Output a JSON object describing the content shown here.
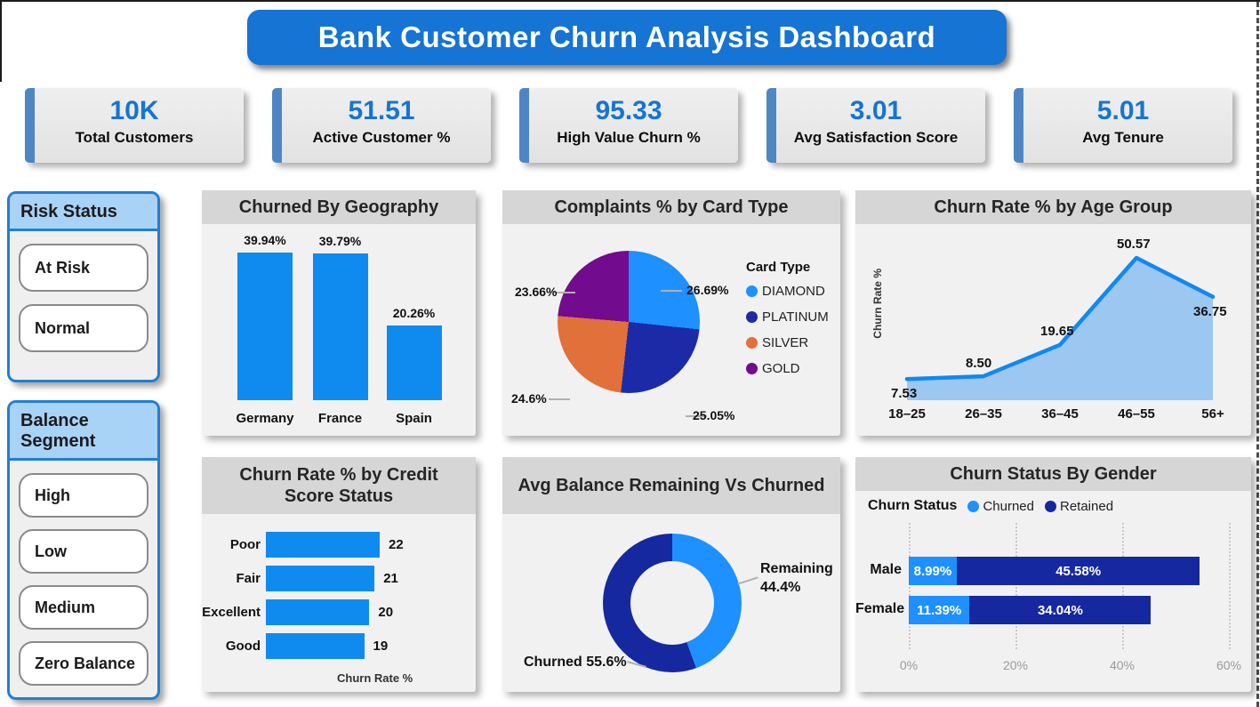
{
  "page": {
    "title": "Bank Customer Churn Analysis Dashboard"
  },
  "colors": {
    "banner_blue": "#1574d4",
    "kpi_accent": "#4e86c4",
    "bright_blue": "#0f8bf0",
    "navy": "#16289f",
    "orange": "#e2703a",
    "purple": "#720b8e",
    "area_fill": "#9cc7f0",
    "slicer_border": "#1e7fd8",
    "slicer_header_bg": "#a9d2f7"
  },
  "kpis": [
    {
      "value": "10K",
      "label": "Total Customers"
    },
    {
      "value": "51.51",
      "label": "Active Customer %"
    },
    {
      "value": "95.33",
      "label": "High Value Churn %"
    },
    {
      "value": "3.01",
      "label": "Avg Satisfaction Score"
    },
    {
      "value": "5.01",
      "label": "Avg Tenure"
    }
  ],
  "slicers": [
    {
      "title": "Risk Status",
      "options": [
        "At Risk",
        "Normal"
      ]
    },
    {
      "title": "Balance Segment",
      "options": [
        "High",
        "Low",
        "Medium",
        "Zero Balance"
      ]
    }
  ],
  "chart_data": [
    {
      "id": "churned_by_geography",
      "type": "bar",
      "title": "Churned By Geography",
      "categories": [
        "Germany",
        "France",
        "Spain"
      ],
      "values": [
        39.94,
        39.79,
        20.26
      ],
      "labels": [
        "39.94%",
        "39.79%",
        "20.26%"
      ],
      "ylim": [
        0,
        45
      ],
      "bar_color": "#0f8bf0"
    },
    {
      "id": "complaints_pct_by_card_type",
      "type": "pie",
      "title": "Complaints % by Card Type",
      "legend_title": "Card Type",
      "legend_position": "right",
      "slices": [
        {
          "name": "DIAMOND",
          "value": 26.69,
          "label": "26.69%",
          "color": "#1e90ff"
        },
        {
          "name": "PLATINUM",
          "value": 25.05,
          "label": "25.05%",
          "color": "#1c2aa8"
        },
        {
          "name": "SILVER",
          "value": 24.6,
          "label": "24.6%",
          "color": "#e2703a"
        },
        {
          "name": "GOLD",
          "value": 23.66,
          "label": "23.66%",
          "color": "#720b8e"
        }
      ]
    },
    {
      "id": "churn_rate_pct_by_age_group",
      "type": "area",
      "title": "Churn Rate % by Age Group",
      "ylabel": "Churn Rate %",
      "categories": [
        "18–25",
        "26–35",
        "36–45",
        "46–55",
        "56+"
      ],
      "values": [
        7.53,
        8.5,
        19.65,
        50.57,
        36.75
      ],
      "labels": [
        "7.53",
        "8.50",
        "19.65",
        "50.57",
        "36.75"
      ],
      "ylim": [
        0,
        55
      ],
      "line_color": "#1089f0",
      "fill_color": "#9cc7f0"
    },
    {
      "id": "churn_rate_pct_by_credit_score_status",
      "type": "bar",
      "orientation": "horizontal",
      "title": "Churn Rate % by Credit Score Status",
      "xlabel": "Churn Rate %",
      "categories": [
        "Poor",
        "Fair",
        "Excellent",
        "Good"
      ],
      "values": [
        22,
        21,
        20,
        19
      ],
      "labels": [
        "22",
        "21",
        "20",
        "19"
      ],
      "xlim": [
        0,
        24
      ],
      "bar_color": "#0f8bf0"
    },
    {
      "id": "avg_balance_remaining_vs_churned",
      "type": "donut",
      "title": "Avg Balance Remaining Vs Churned",
      "slices": [
        {
          "name": "Remaining",
          "value": 44.4,
          "label": "44.4%",
          "color": "#1e90ff"
        },
        {
          "name": "Churned",
          "value": 55.6,
          "label": "55.6%",
          "color": "#16289f"
        }
      ]
    },
    {
      "id": "churn_status_by_gender",
      "type": "bar",
      "orientation": "horizontal-stacked",
      "title": "Churn Status By Gender",
      "legend_title": "Churn Status",
      "categories": [
        "Male",
        "Female"
      ],
      "series": [
        {
          "name": "Churned",
          "color": "#1e90ff",
          "values": [
            8.99,
            11.39
          ],
          "labels": [
            "8.99%",
            "11.39%"
          ]
        },
        {
          "name": "Retained",
          "color": "#16289f",
          "values": [
            45.58,
            34.04
          ],
          "labels": [
            "45.58%",
            "34.04%"
          ]
        }
      ],
      "x_ticks": [
        "0%",
        "20%",
        "40%",
        "60%"
      ],
      "xlim": [
        0,
        60
      ],
      "grid": "dotted-vertical"
    }
  ]
}
